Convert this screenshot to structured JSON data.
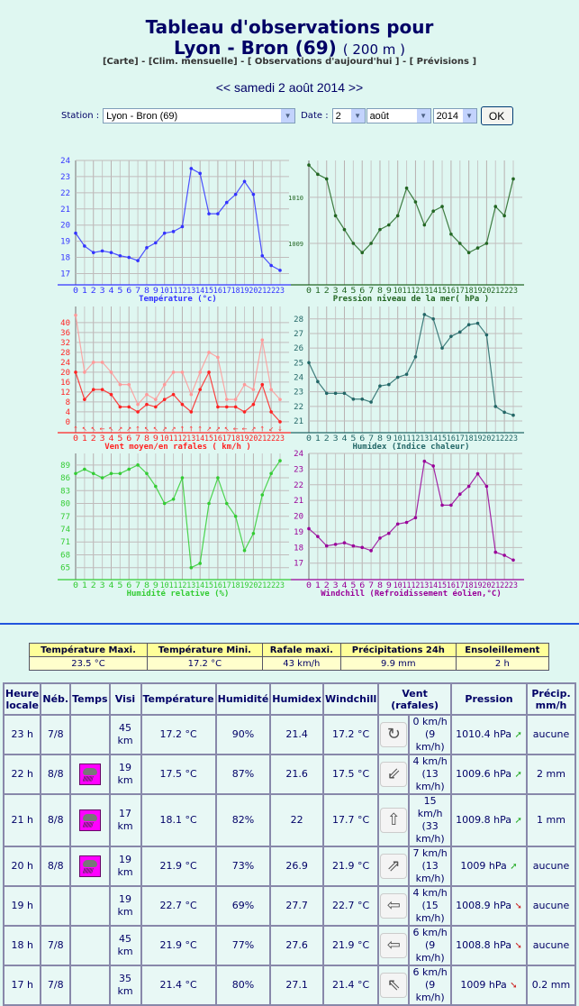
{
  "header": {
    "title_line1": "Tableau d'observations pour",
    "station_name": "Lyon - Bron (69)",
    "altitude": "( 200 m )",
    "links": [
      "[Carte]",
      "[Clim. mensuelle]",
      "[ Observations d'aujourd'hui ]",
      "[ Prévisions ]"
    ],
    "link_sep": " - ",
    "date_prev": "<<",
    "date_label": "samedi 2 août 2014",
    "date_next": ">>"
  },
  "form": {
    "station_label": "Station :",
    "station_value": "Lyon - Bron (69)",
    "date_label": "Date :",
    "day_value": "2",
    "month_value": "août",
    "year_value": "2014",
    "ok_label": "OK"
  },
  "hours": [
    "0",
    "1",
    "2",
    "3",
    "4",
    "5",
    "6",
    "7",
    "8",
    "9",
    "10",
    "11",
    "12",
    "13",
    "14",
    "15",
    "16",
    "17",
    "18",
    "19",
    "20",
    "21",
    "22",
    "23"
  ],
  "chart_data": [
    {
      "type": "line",
      "title": "Température (°c)",
      "color": "#3333ff",
      "ylim": [
        16.3,
        24
      ],
      "yticks": [
        17,
        18,
        19,
        20,
        21,
        22,
        23,
        24
      ],
      "series": [
        {
          "name": "Température",
          "values": [
            19.5,
            18.7,
            18.3,
            18.4,
            18.3,
            18.1,
            18.0,
            17.8,
            18.6,
            18.9,
            19.5,
            19.6,
            19.9,
            23.5,
            23.2,
            20.7,
            20.7,
            21.4,
            21.9,
            22.7,
            21.9,
            18.1,
            17.5,
            17.2
          ]
        }
      ]
    },
    {
      "type": "line",
      "title": "Pression niveau de la mer( hPa )",
      "color": "#226622",
      "ylim": [
        1008.1,
        1010.8
      ],
      "yticks": [
        1009,
        1010
      ],
      "series": [
        {
          "name": "Pression",
          "values": [
            1010.7,
            1010.5,
            1010.4,
            1009.6,
            1009.3,
            1009.0,
            1008.8,
            1009.0,
            1009.3,
            1009.4,
            1009.6,
            1010.2,
            1009.9,
            1009.4,
            1009.7,
            1009.8,
            1009.2,
            1009.0,
            1008.8,
            1008.9,
            1009.0,
            1009.8,
            1009.6,
            1010.4
          ]
        }
      ]
    },
    {
      "type": "line",
      "title": "Vent moyen/en rafales ( km/h )",
      "color": "#ff2222",
      "ylim": [
        -4.4,
        46.5
      ],
      "yticks": [
        0,
        4,
        8,
        12,
        16,
        20,
        24,
        28,
        32,
        36,
        40
      ],
      "series": [
        {
          "name": "Vent moyen",
          "color": "#ff2222",
          "values": [
            20,
            9,
            13,
            13,
            11,
            6,
            6,
            4,
            7,
            6,
            9,
            11,
            7,
            4,
            13,
            20,
            6,
            6,
            6,
            4,
            7,
            15,
            4,
            0
          ]
        },
        {
          "name": "Rafales",
          "color": "#ff9999",
          "values": [
            43,
            20,
            24,
            24,
            20,
            15,
            15,
            7,
            11,
            9,
            15,
            20,
            20,
            11,
            20,
            28,
            26,
            9,
            9,
            15,
            13,
            33,
            13,
            9
          ]
        }
      ],
      "direction_arrows": [
        "↑",
        "↖",
        "↖",
        "←",
        "↖",
        "↗",
        "↗",
        "↑",
        "↖",
        "↖",
        "↗",
        "↗",
        "↑",
        "↑",
        "↑",
        "↗",
        "↗",
        "↖",
        "←",
        "←",
        "↗",
        "↑",
        "↙",
        "↓"
      ]
    },
    {
      "type": "line",
      "title": "Humidex (Indice chaleur)",
      "color": "#226666",
      "ylim": [
        20.2,
        28.85
      ],
      "yticks": [
        21,
        22,
        23,
        24,
        25,
        26,
        27,
        28
      ],
      "series": [
        {
          "name": "Humidex",
          "values": [
            25.0,
            23.7,
            22.9,
            22.9,
            22.9,
            22.5,
            22.5,
            22.3,
            23.4,
            23.5,
            24.0,
            24.2,
            25.4,
            28.3,
            28.0,
            26.0,
            26.8,
            27.1,
            27.6,
            27.7,
            26.9,
            22.0,
            21.6,
            21.4
          ]
        }
      ]
    },
    {
      "type": "line",
      "title": "Humidité relative (%)",
      "color": "#33cc33",
      "ylim": [
        62.2,
        91.7
      ],
      "yticks": [
        65,
        68,
        71,
        74,
        77,
        80,
        83,
        86,
        89
      ],
      "series": [
        {
          "name": "Humidité",
          "values": [
            87,
            88,
            87,
            86,
            87,
            87,
            88,
            89,
            87,
            84,
            80,
            81,
            86,
            65,
            66,
            80,
            86,
            80,
            77,
            69,
            73,
            82,
            87,
            90
          ]
        }
      ]
    },
    {
      "type": "line",
      "title": "Windchill (Refroidissement éolien,°C)",
      "color": "#990099",
      "ylim": [
        15.95,
        24
      ],
      "yticks": [
        17,
        18,
        19,
        20,
        21,
        22,
        23,
        24
      ],
      "series": [
        {
          "name": "Windchill",
          "values": [
            19.2,
            18.7,
            18.1,
            18.2,
            18.3,
            18.1,
            18.0,
            17.8,
            18.6,
            18.9,
            19.5,
            19.6,
            19.9,
            23.5,
            23.2,
            20.7,
            20.7,
            21.4,
            21.9,
            22.7,
            21.9,
            17.7,
            17.5,
            17.2
          ]
        }
      ]
    }
  ],
  "summary": {
    "headers": [
      "Température Maxi.",
      "Température Mini.",
      "Rafale maxi.",
      "Précipitations 24h",
      "Ensoleillement"
    ],
    "values": [
      "23.5 °C",
      "17.2 °C",
      "43 km/h",
      "9.9 mm",
      "2 h"
    ]
  },
  "observations": {
    "headers": [
      "Heure locale",
      "Néb.",
      "Temps",
      "Visi",
      "Température",
      "Humidité",
      "Humidex",
      "Windchill",
      "Vent (rafales)",
      "Pression",
      "Précip. mm/h"
    ],
    "rows": [
      {
        "heure": "23 h",
        "neb": "7/8",
        "temps": "",
        "visi": "45 km",
        "temp": "17.2 °C",
        "hum": "90%",
        "humidex": "21.4",
        "windchill": "17.2 °C",
        "wind_icon": "variable-wind-icon",
        "wind_glyph": "↻",
        "vent": "0 km/h (9 km/h)",
        "pression": "1010.4 hPa",
        "trend": "up",
        "precip": "aucune"
      },
      {
        "heure": "22 h",
        "neb": "8/8",
        "temps": "rain",
        "visi": "19 km",
        "temp": "17.5 °C",
        "hum": "87%",
        "humidex": "21.6",
        "windchill": "17.5 °C",
        "wind_icon": "arrow-down-left-icon",
        "wind_glyph": "⇙",
        "vent": "4 km/h (13 km/h)",
        "pression": "1009.6 hPa",
        "trend": "up",
        "precip": "2 mm"
      },
      {
        "heure": "21 h",
        "neb": "8/8",
        "temps": "rain",
        "visi": "17 km",
        "temp": "18.1 °C",
        "hum": "82%",
        "humidex": "22",
        "windchill": "17.7 °C",
        "wind_icon": "arrow-up-icon",
        "wind_glyph": "⇧",
        "vent": "15 km/h (33 km/h)",
        "pression": "1009.8 hPa",
        "trend": "up",
        "precip": "1 mm"
      },
      {
        "heure": "20 h",
        "neb": "8/8",
        "temps": "rain",
        "visi": "19 km",
        "temp": "21.9 °C",
        "hum": "73%",
        "humidex": "26.9",
        "windchill": "21.9 °C",
        "wind_icon": "arrow-up-right-icon",
        "wind_glyph": "⇗",
        "vent": "7 km/h (13 km/h)",
        "pression": "1009 hPa",
        "trend": "up",
        "precip": "aucune"
      },
      {
        "heure": "19 h",
        "neb": "",
        "temps": "",
        "visi": "19 km",
        "temp": "22.7 °C",
        "hum": "69%",
        "humidex": "27.7",
        "windchill": "22.7 °C",
        "wind_icon": "arrow-left-icon",
        "wind_glyph": "⇦",
        "vent": "4 km/h (15 km/h)",
        "pression": "1008.9 hPa",
        "trend": "down",
        "precip": "aucune"
      },
      {
        "heure": "18 h",
        "neb": "7/8",
        "temps": "",
        "visi": "45 km",
        "temp": "21.9 °C",
        "hum": "77%",
        "humidex": "27.6",
        "windchill": "21.9 °C",
        "wind_icon": "arrow-left-icon",
        "wind_glyph": "⇦",
        "vent": "6 km/h (9 km/h)",
        "pression": "1008.8 hPa",
        "trend": "down",
        "precip": "aucune"
      },
      {
        "heure": "17 h",
        "neb": "7/8",
        "temps": "",
        "visi": "35 km",
        "temp": "21.4 °C",
        "hum": "80%",
        "humidex": "27.1",
        "windchill": "21.4 °C",
        "wind_icon": "arrow-up-left-icon",
        "wind_glyph": "⇖",
        "vent": "6 km/h (9 km/h)",
        "pression": "1009 hPa",
        "trend": "down",
        "precip": "0.2 mm"
      }
    ]
  }
}
